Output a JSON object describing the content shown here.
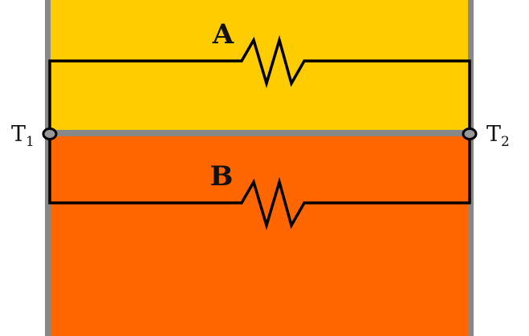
{
  "colors": {
    "layer_a": "#ffcc00",
    "layer_b": "#ff6600",
    "border": "#888888",
    "wire": "#000000",
    "terminal_fill": "#999999",
    "background": "#ffffff"
  },
  "resistors": [
    {
      "label": "A"
    },
    {
      "label": "B"
    }
  ],
  "terminals": [
    {
      "letter": "T",
      "subscript": "1"
    },
    {
      "letter": "T",
      "subscript": "2"
    }
  ]
}
